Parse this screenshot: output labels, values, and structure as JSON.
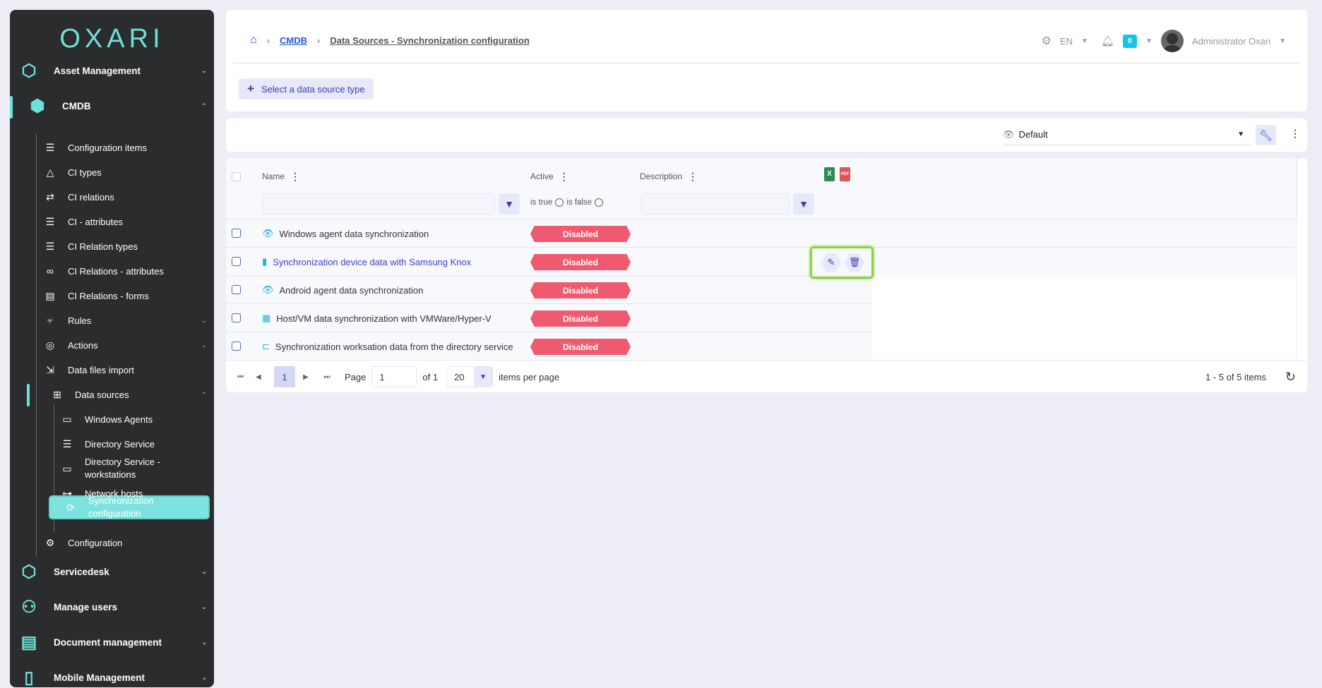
{
  "sidebar": {
    "logo": "OXARI",
    "items": [
      {
        "label": "Asset Management",
        "icon": "hexagons-icon"
      },
      {
        "label": "CMDB",
        "icon": "cmdb-icon"
      },
      {
        "label": "Configuration items",
        "icon": "list-icon"
      },
      {
        "label": "CI types",
        "icon": "shapes-icon"
      },
      {
        "label": "CI relations",
        "icon": "arrows-icon"
      },
      {
        "label": "CI - attributes",
        "icon": "list-icon"
      },
      {
        "label": "CI Relation types",
        "icon": "list-icon"
      },
      {
        "label": "CI Relations - attributes",
        "icon": "link-icon"
      },
      {
        "label": "CI Relations - forms",
        "icon": "form-icon"
      },
      {
        "label": "Rules",
        "icon": "chart-icon"
      },
      {
        "label": "Actions",
        "icon": "target-icon"
      },
      {
        "label": "Data files import",
        "icon": "import-icon"
      },
      {
        "label": "Data sources",
        "icon": "box-icon"
      },
      {
        "label": "Windows Agents",
        "icon": "monitor-icon"
      },
      {
        "label": "Directory Service",
        "icon": "list-icon"
      },
      {
        "label": "Directory Service - workstations",
        "icon": "monitor-icon"
      },
      {
        "label": "Network hosts",
        "icon": "network-icon"
      },
      {
        "label": "Synchronization configuration",
        "icon": "sync-icon"
      },
      {
        "label": "Configuration",
        "icon": "gears-icon"
      },
      {
        "label": "Servicedesk",
        "icon": "headset-icon"
      },
      {
        "label": "Manage users",
        "icon": "users-icon"
      },
      {
        "label": "Document management",
        "icon": "documents-icon"
      },
      {
        "label": "Mobile Management",
        "icon": "mobile-icon"
      }
    ]
  },
  "header": {
    "breadcrumb": [
      "CMDB",
      "Data Sources - Synchronization configuration"
    ],
    "language": "EN",
    "notifications": "0",
    "user": "Administrator Oxari",
    "add_button": "Select a data source type"
  },
  "toolbar": {
    "view": "Default"
  },
  "table": {
    "columns": {
      "name": "Name",
      "active": "Active",
      "description": "Description"
    },
    "filter_true": "is true",
    "filter_false": "is false",
    "rows": [
      {
        "name": "Windows agent data synchronization",
        "active": "Disabled",
        "icon": "eye-icon"
      },
      {
        "name": "Synchronization device data with Samsung Knox",
        "active": "Disabled",
        "icon": "phone-icon"
      },
      {
        "name": "Android agent data synchronization",
        "active": "Disabled",
        "icon": "eye-icon"
      },
      {
        "name": "Host/VM data synchronization with VMWare/Hyper-V",
        "active": "Disabled",
        "icon": "grid-icon"
      },
      {
        "name": "Synchronization worksation data from the directory service",
        "active": "Disabled",
        "icon": "tree-icon"
      }
    ]
  },
  "pager": {
    "current": "1",
    "page_label": "Page",
    "page_value": "1",
    "of": "of 1",
    "per_page": "20",
    "per_page_label": "items per page",
    "summary": "1 - 5 of 5 items"
  },
  "colors": {
    "sidebar": "#2b2c2e",
    "accent": "#6fe0d8",
    "disabled": "#f05a6e",
    "primary": "#3a3fb0",
    "highlight": "#8dd13a"
  }
}
